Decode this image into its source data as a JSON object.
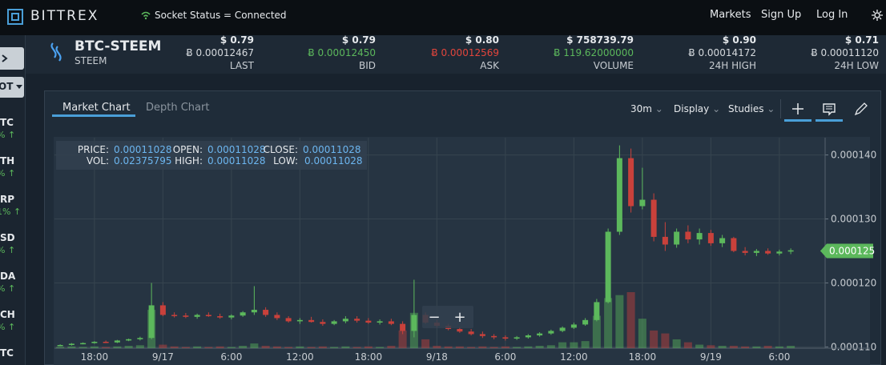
{
  "nav": {
    "brand": "BITTREX",
    "socket_status": "Socket Status = Connected",
    "links": [
      "Markets",
      "Sign Up",
      "Log In"
    ]
  },
  "market": {
    "pair": "BTC-STEEM",
    "name": "STEEM"
  },
  "ticker": [
    {
      "usd": "$ 0.79",
      "btc": "Ƀ 0.00012467",
      "label": "LAST",
      "tone": "last"
    },
    {
      "usd": "$ 0.79",
      "btc": "Ƀ 0.00012450",
      "label": "BID",
      "tone": "bid"
    },
    {
      "usd": "$ 0.80",
      "btc": "Ƀ 0.00012569",
      "label": "ASK",
      "tone": "ask"
    },
    {
      "usd": "$ 758739.79",
      "btc": "Ƀ 119.62000000",
      "label": "VOLUME",
      "tone": "volume"
    },
    {
      "usd": "$ 0.90",
      "btc": "Ƀ 0.00014172",
      "label": "24H HIGH",
      "tone": "high"
    },
    {
      "usd": "$ 0.71",
      "btc": "Ƀ 0.00011120",
      "label": "24H LOW",
      "tone": "low"
    }
  ],
  "sidebar": {
    "toggle": "OT",
    "items": [
      {
        "symbol": "TC",
        "change": "% ↑"
      },
      {
        "symbol": "TH",
        "change": "% ↑"
      },
      {
        "symbol": "RP",
        "change": "1% ↑"
      },
      {
        "symbol": "SD",
        "change": "% ↑"
      },
      {
        "symbol": "DA",
        "change": "% ↑"
      },
      {
        "symbol": "CH",
        "change": "% ↑"
      },
      {
        "symbol": "TC"
      }
    ]
  },
  "chart_tabs": [
    "Market Chart",
    "Depth Chart"
  ],
  "toolbar": [
    "30m",
    "Display",
    "Studies"
  ],
  "ohlc_info": [
    {
      "label": "PRICE:",
      "value": "0.00011028"
    },
    {
      "label": "OPEN:",
      "value": "0.00011028"
    },
    {
      "label": "CLOSE:",
      "value": "0.00011028"
    },
    {
      "label": "VOL:",
      "value": "0.02375795"
    },
    {
      "label": "HIGH:",
      "value": "0.00011028"
    },
    {
      "label": "LOW:",
      "value": "0.00011028"
    }
  ],
  "zoom": [
    "−",
    "+"
  ],
  "chart_data": {
    "type": "candlestick",
    "categories": [
      null,
      null,
      null,
      "18:00",
      null,
      null,
      null,
      null,
      null,
      "9/17",
      null,
      null,
      null,
      null,
      null,
      "6:00",
      null,
      null,
      null,
      null,
      null,
      "12:00",
      null,
      null,
      null,
      null,
      null,
      "18:00",
      null,
      null,
      null,
      null,
      null,
      "9/18",
      null,
      null,
      null,
      null,
      null,
      "6:00",
      null,
      null,
      null,
      null,
      null,
      "12:00",
      null,
      null,
      null,
      null,
      null,
      "18:00",
      null,
      null,
      null,
      null,
      null,
      "9/19",
      null,
      null,
      null,
      null,
      null,
      "6:00",
      null
    ],
    "open": [
      0.0001102,
      0.0001103,
      0.0001105,
      0.0001106,
      0.0001108,
      0.0001107,
      0.000111,
      0.0001112,
      0.0001114,
      0.0001165,
      0.000115,
      0.0001149,
      0.0001147,
      0.000115,
      0.0001148,
      0.0001146,
      0.0001149,
      0.0001154,
      0.0001158,
      0.000115,
      0.0001145,
      0.000114,
      0.0001142,
      0.0001139,
      0.0001136,
      0.000114,
      0.0001144,
      0.0001141,
      0.0001138,
      0.000114,
      0.0001136,
      0.0001125,
      0.000115,
      0.0001138,
      0.0001133,
      0.0001128,
      0.0001124,
      0.000112,
      0.0001117,
      0.0001115,
      0.0001113,
      0.0001115,
      0.0001118,
      0.0001121,
      0.0001125,
      0.000113,
      0.0001135,
      0.0001142,
      0.000117,
      0.000128,
      0.0001395,
      0.000132,
      0.000133,
      0.0001272,
      0.000126,
      0.000128,
      0.0001268,
      0.0001278,
      0.0001262,
      0.000127,
      0.000125,
      0.0001247,
      0.000125,
      0.0001246,
      0.0001249
    ],
    "high": [
      0.0001104,
      0.0001106,
      0.0001107,
      0.0001109,
      0.000111,
      0.0001111,
      0.0001113,
      0.0001116,
      0.00012,
      0.000117,
      0.0001154,
      0.0001153,
      0.0001152,
      0.0001154,
      0.0001152,
      0.0001151,
      0.0001156,
      0.0001195,
      0.0001162,
      0.0001154,
      0.0001148,
      0.0001145,
      0.0001147,
      0.0001143,
      0.0001142,
      0.0001148,
      0.0001148,
      0.0001145,
      0.0001143,
      0.0001144,
      0.000114,
      0.0001205,
      0.0001154,
      0.0001142,
      0.0001136,
      0.0001131,
      0.0001128,
      0.0001124,
      0.000112,
      0.0001118,
      0.0001117,
      0.000112,
      0.0001123,
      0.0001127,
      0.0001132,
      0.0001138,
      0.0001145,
      0.0001175,
      0.0001285,
      0.0001415,
      0.000141,
      0.000138,
      0.000134,
      0.0001295,
      0.0001285,
      0.000129,
      0.0001285,
      0.0001283,
      0.0001275,
      0.0001272,
      0.0001256,
      0.0001253,
      0.0001254,
      0.0001252,
      0.0001254
    ],
    "low": [
      0.0001101,
      0.0001102,
      0.0001104,
      0.0001105,
      0.0001106,
      0.0001106,
      0.0001109,
      0.000111,
      0.0001112,
      0.0001148,
      0.0001146,
      0.0001145,
      0.0001144,
      0.0001147,
      0.0001144,
      0.0001143,
      0.0001147,
      0.000115,
      0.0001147,
      0.0001142,
      0.0001138,
      0.0001136,
      0.0001138,
      0.0001133,
      0.0001134,
      0.0001137,
      0.0001138,
      0.0001136,
      0.0001135,
      0.0001134,
      0.000112,
      0.0001115,
      0.0001136,
      0.000113,
      0.0001126,
      0.0001122,
      0.0001118,
      0.0001114,
      0.0001112,
      0.000111,
      0.0001111,
      0.0001113,
      0.0001116,
      0.0001119,
      0.0001123,
      0.0001128,
      0.0001133,
      0.000114,
      0.0001168,
      0.0001275,
      0.000131,
      0.0001315,
      0.0001265,
      0.000125,
      0.0001255,
      0.0001262,
      0.000126,
      0.0001258,
      0.0001256,
      0.0001248,
      0.0001243,
      0.0001242,
      0.0001244,
      0.0001243,
      0.0001245
    ],
    "close": [
      0.0001103,
      0.0001105,
      0.0001106,
      0.0001108,
      0.0001107,
      0.000111,
      0.0001112,
      0.0001114,
      0.0001165,
      0.000115,
      0.0001149,
      0.0001147,
      0.000115,
      0.0001148,
      0.0001146,
      0.0001149,
      0.0001154,
      0.0001158,
      0.000115,
      0.0001145,
      0.000114,
      0.0001142,
      0.0001139,
      0.0001136,
      0.000114,
      0.0001144,
      0.0001141,
      0.0001138,
      0.000114,
      0.0001136,
      0.0001125,
      0.000115,
      0.0001138,
      0.0001133,
      0.0001128,
      0.0001124,
      0.000112,
      0.0001117,
      0.0001115,
      0.0001113,
      0.0001115,
      0.0001118,
      0.0001121,
      0.0001125,
      0.000113,
      0.0001135,
      0.0001142,
      0.000117,
      0.000128,
      0.0001395,
      0.000132,
      0.000133,
      0.0001272,
      0.000126,
      0.000128,
      0.0001268,
      0.0001278,
      0.0001262,
      0.000127,
      0.000125,
      0.0001247,
      0.000125,
      0.0001246,
      0.0001249,
      0.0001251
    ],
    "volume": [
      0.2,
      0.3,
      0.2,
      0.3,
      0.2,
      0.3,
      0.4,
      0.5,
      6.5,
      0.6,
      0.3,
      0.2,
      0.3,
      0.2,
      0.3,
      0.2,
      0.4,
      0.8,
      0.4,
      0.3,
      0.2,
      0.3,
      0.2,
      0.3,
      0.2,
      0.3,
      0.2,
      0.3,
      0.2,
      0.4,
      3,
      6,
      1.5,
      0.4,
      0.3,
      0.3,
      0.2,
      0.3,
      0.2,
      0.3,
      0.2,
      0.3,
      0.4,
      0.5,
      1,
      1,
      1.2,
      5.5,
      8.5,
      9,
      9.5,
      5,
      3,
      2.5,
      1.5,
      1,
      0.6,
      0.5,
      0.4,
      0.4,
      0.3,
      0.3,
      0.4,
      0.3,
      0.4
    ],
    "up_color": "#5cb85c",
    "down_color": "#c9413b",
    "ylim": [
      0.0001098,
      0.0001427
    ],
    "yticks": [
      {
        "value": 0.00011,
        "label": "0.000110"
      },
      {
        "value": 0.00012,
        "label": "0.000120"
      },
      {
        "value": 0.00013,
        "label": "0.000130"
      },
      {
        "value": 0.00014,
        "label": "0.000140"
      }
    ],
    "current_price": {
      "value": 0.000125,
      "label": "0.000125"
    },
    "grid": true
  }
}
